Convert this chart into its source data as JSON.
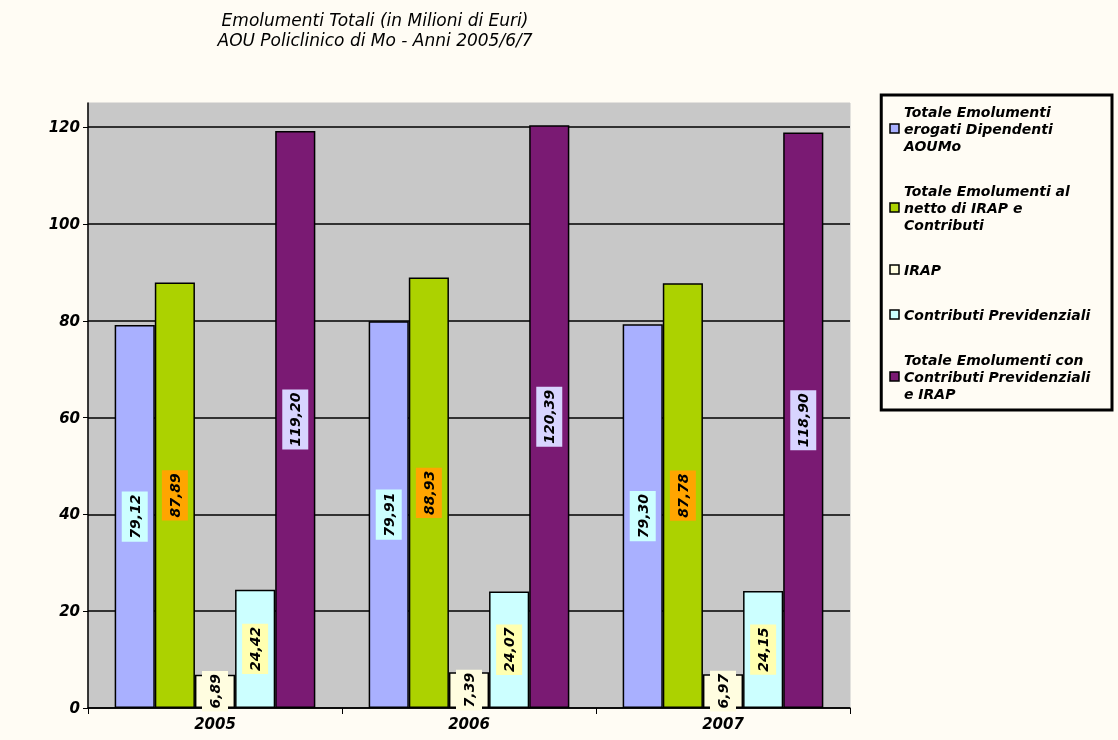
{
  "chart_data": {
    "type": "bar",
    "title": "Emolumenti Totali (in Milioni di Euri)",
    "subtitle": "AOU Policlinico di Mo - Anni 2005/6/7",
    "categories": [
      "2005",
      "2006",
      "2007"
    ],
    "series": [
      {
        "name": "Totale Emolumenti erogati Dipendenti AOUMo",
        "color": "#a9b0ff",
        "values": [
          79.12,
          79.91,
          79.3
        ],
        "value_labels": [
          "79,12",
          "79,91",
          "79,30"
        ]
      },
      {
        "name": "Totale Emolumenti al netto di IRAP e Contributi",
        "color": "#acd200",
        "values": [
          87.89,
          88.93,
          87.78
        ],
        "value_labels": [
          "87,89",
          "88,93",
          "87,78"
        ]
      },
      {
        "name": "IRAP",
        "color": "#fffde0",
        "values": [
          6.89,
          7.39,
          6.97
        ],
        "value_labels": [
          "6,89",
          "7,39",
          "6,97"
        ]
      },
      {
        "name": "Contributi Previdenziali",
        "color": "#ccffff",
        "values": [
          24.42,
          24.07,
          24.15
        ],
        "value_labels": [
          "24,42",
          "24,07",
          "24,15"
        ]
      },
      {
        "name": "Totale Emolumenti con Contributi Previdenziali e IRAP",
        "color": "#7a1a73",
        "values": [
          119.2,
          120.39,
          118.9
        ],
        "value_labels": [
          "119,20",
          "120,39",
          "118,90"
        ]
      }
    ],
    "ylim": [
      0,
      125
    ],
    "yticks": [
      0,
      20,
      40,
      60,
      80,
      100,
      120
    ],
    "grid": "y",
    "legend": "right"
  }
}
